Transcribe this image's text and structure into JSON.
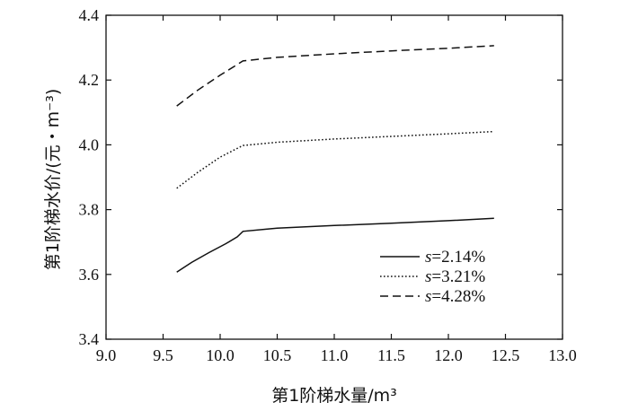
{
  "chart_data": {
    "type": "line",
    "xlabel": "第1阶梯水量/m³",
    "ylabel": "第1阶梯水价/(元・m⁻³)",
    "xlim": [
      9.0,
      13.0
    ],
    "ylim": [
      3.4,
      4.4
    ],
    "x_ticks": [
      "9.0",
      "9.5",
      "10.0",
      "10.5",
      "11.0",
      "11.5",
      "12.0",
      "12.5",
      "13.0"
    ],
    "y_ticks": [
      "3.4",
      "3.6",
      "3.8",
      "4.0",
      "4.2",
      "4.4"
    ],
    "grid": false,
    "legend_position": "bottom-right",
    "series": [
      {
        "name_prefix": "s",
        "name_value": "=2.14%",
        "style": "solid",
        "points": [
          [
            9.62,
            3.607
          ],
          [
            9.75,
            3.637
          ],
          [
            9.9,
            3.667
          ],
          [
            10.05,
            3.695
          ],
          [
            10.15,
            3.716
          ],
          [
            10.2,
            3.733
          ],
          [
            10.5,
            3.743
          ],
          [
            11.0,
            3.751
          ],
          [
            11.5,
            3.758
          ],
          [
            12.0,
            3.766
          ],
          [
            12.4,
            3.773
          ]
        ]
      },
      {
        "name_prefix": "s",
        "name_value": "=3.21%",
        "style": "dotted",
        "points": [
          [
            9.62,
            3.866
          ],
          [
            9.8,
            3.914
          ],
          [
            10.0,
            3.962
          ],
          [
            10.2,
            3.998
          ],
          [
            10.5,
            4.008
          ],
          [
            11.0,
            4.018
          ],
          [
            11.5,
            4.026
          ],
          [
            12.0,
            4.034
          ],
          [
            12.4,
            4.041
          ]
        ]
      },
      {
        "name_prefix": "s",
        "name_value": "=4.28%",
        "style": "dashed",
        "points": [
          [
            9.62,
            4.12
          ],
          [
            9.8,
            4.168
          ],
          [
            10.0,
            4.215
          ],
          [
            10.2,
            4.259
          ],
          [
            10.5,
            4.27
          ],
          [
            11.0,
            4.281
          ],
          [
            11.5,
            4.29
          ],
          [
            12.0,
            4.298
          ],
          [
            12.4,
            4.306
          ]
        ]
      }
    ]
  }
}
